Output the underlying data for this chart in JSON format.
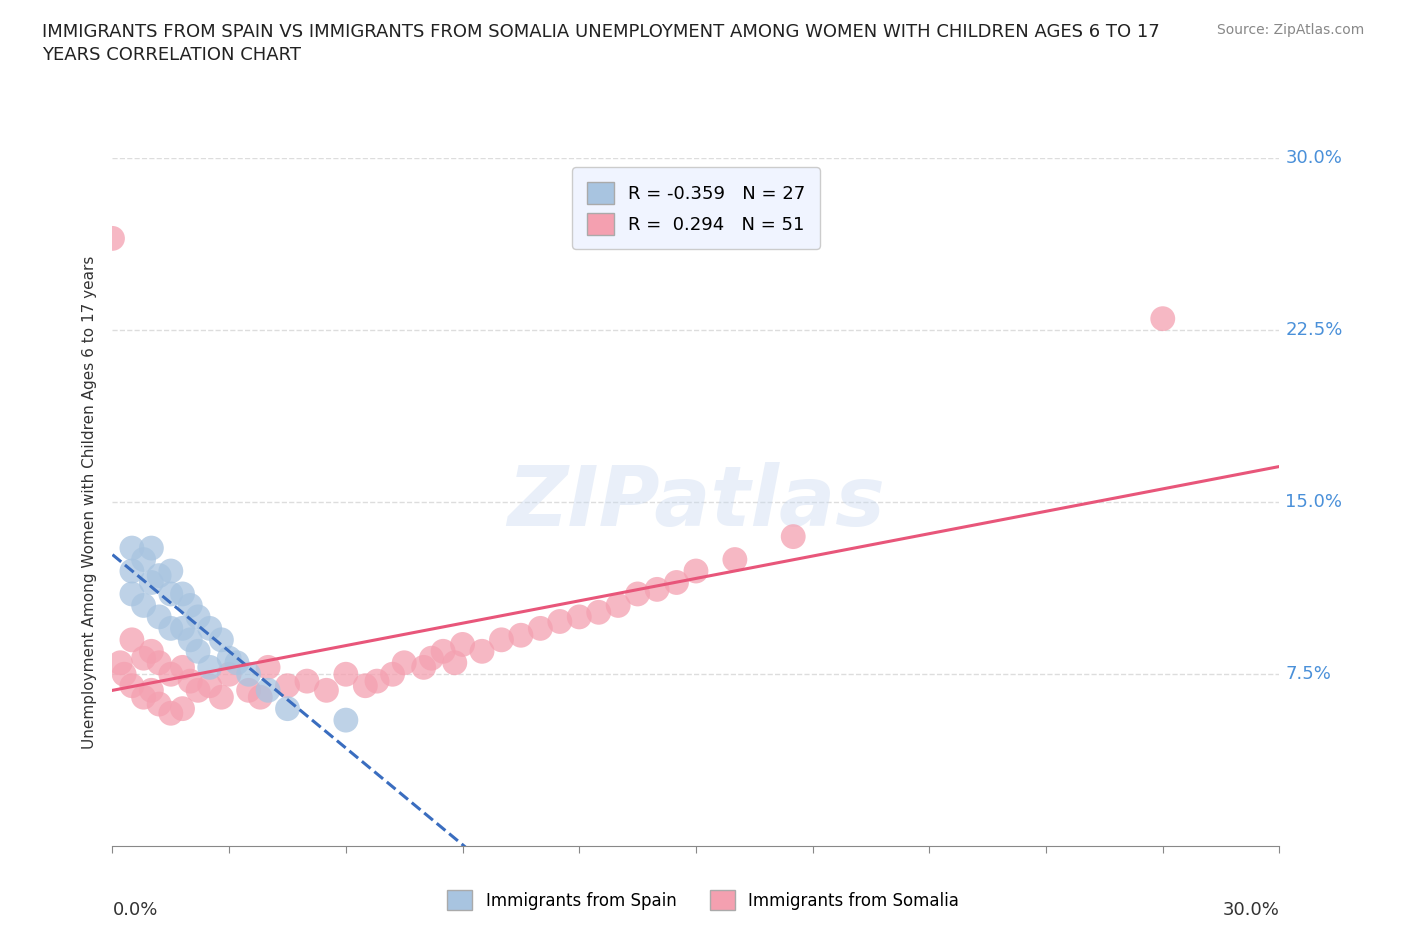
{
  "title": "IMMIGRANTS FROM SPAIN VS IMMIGRANTS FROM SOMALIA UNEMPLOYMENT AMONG WOMEN WITH CHILDREN AGES 6 TO 17\nYEARS CORRELATION CHART",
  "source_text": "Source: ZipAtlas.com",
  "ylabel": "Unemployment Among Women with Children Ages 6 to 17 years",
  "xlim": [
    0.0,
    0.3
  ],
  "ylim": [
    0.0,
    0.3
  ],
  "spain_color": "#a8c4e0",
  "somalia_color": "#f4a0b0",
  "spain_R": -0.359,
  "spain_N": 27,
  "somalia_R": 0.294,
  "somalia_N": 51,
  "spain_line_color": "#3a6dbf",
  "somalia_line_color": "#e8567a",
  "watermark": "ZIPatlas",
  "spain_x": [
    0.005,
    0.005,
    0.005,
    0.008,
    0.008,
    0.01,
    0.01,
    0.012,
    0.012,
    0.015,
    0.015,
    0.015,
    0.018,
    0.018,
    0.02,
    0.02,
    0.022,
    0.022,
    0.025,
    0.025,
    0.028,
    0.03,
    0.032,
    0.035,
    0.04,
    0.045,
    0.06
  ],
  "spain_y": [
    0.13,
    0.12,
    0.11,
    0.125,
    0.105,
    0.13,
    0.115,
    0.118,
    0.1,
    0.12,
    0.11,
    0.095,
    0.11,
    0.095,
    0.105,
    0.09,
    0.1,
    0.085,
    0.095,
    0.078,
    0.09,
    0.082,
    0.08,
    0.075,
    0.068,
    0.06,
    0.055
  ],
  "somalia_x": [
    0.0,
    0.002,
    0.003,
    0.005,
    0.005,
    0.008,
    0.008,
    0.01,
    0.01,
    0.012,
    0.012,
    0.015,
    0.015,
    0.018,
    0.018,
    0.02,
    0.022,
    0.025,
    0.028,
    0.03,
    0.035,
    0.038,
    0.04,
    0.045,
    0.05,
    0.055,
    0.06,
    0.065,
    0.068,
    0.072,
    0.075,
    0.08,
    0.082,
    0.085,
    0.088,
    0.09,
    0.095,
    0.1,
    0.105,
    0.11,
    0.115,
    0.12,
    0.125,
    0.13,
    0.135,
    0.14,
    0.145,
    0.15,
    0.16,
    0.175,
    0.27
  ],
  "somalia_y": [
    0.265,
    0.08,
    0.075,
    0.09,
    0.07,
    0.082,
    0.065,
    0.085,
    0.068,
    0.08,
    0.062,
    0.075,
    0.058,
    0.078,
    0.06,
    0.072,
    0.068,
    0.07,
    0.065,
    0.075,
    0.068,
    0.065,
    0.078,
    0.07,
    0.072,
    0.068,
    0.075,
    0.07,
    0.072,
    0.075,
    0.08,
    0.078,
    0.082,
    0.085,
    0.08,
    0.088,
    0.085,
    0.09,
    0.092,
    0.095,
    0.098,
    0.1,
    0.102,
    0.105,
    0.11,
    0.112,
    0.115,
    0.12,
    0.125,
    0.135,
    0.23
  ],
  "background_color": "#ffffff",
  "grid_color": "#dddddd",
  "title_color": "#222222",
  "right_tick_color": "#4a90d9",
  "legend_box_color": "#f0f4ff",
  "legend_border_color": "#cccccc"
}
